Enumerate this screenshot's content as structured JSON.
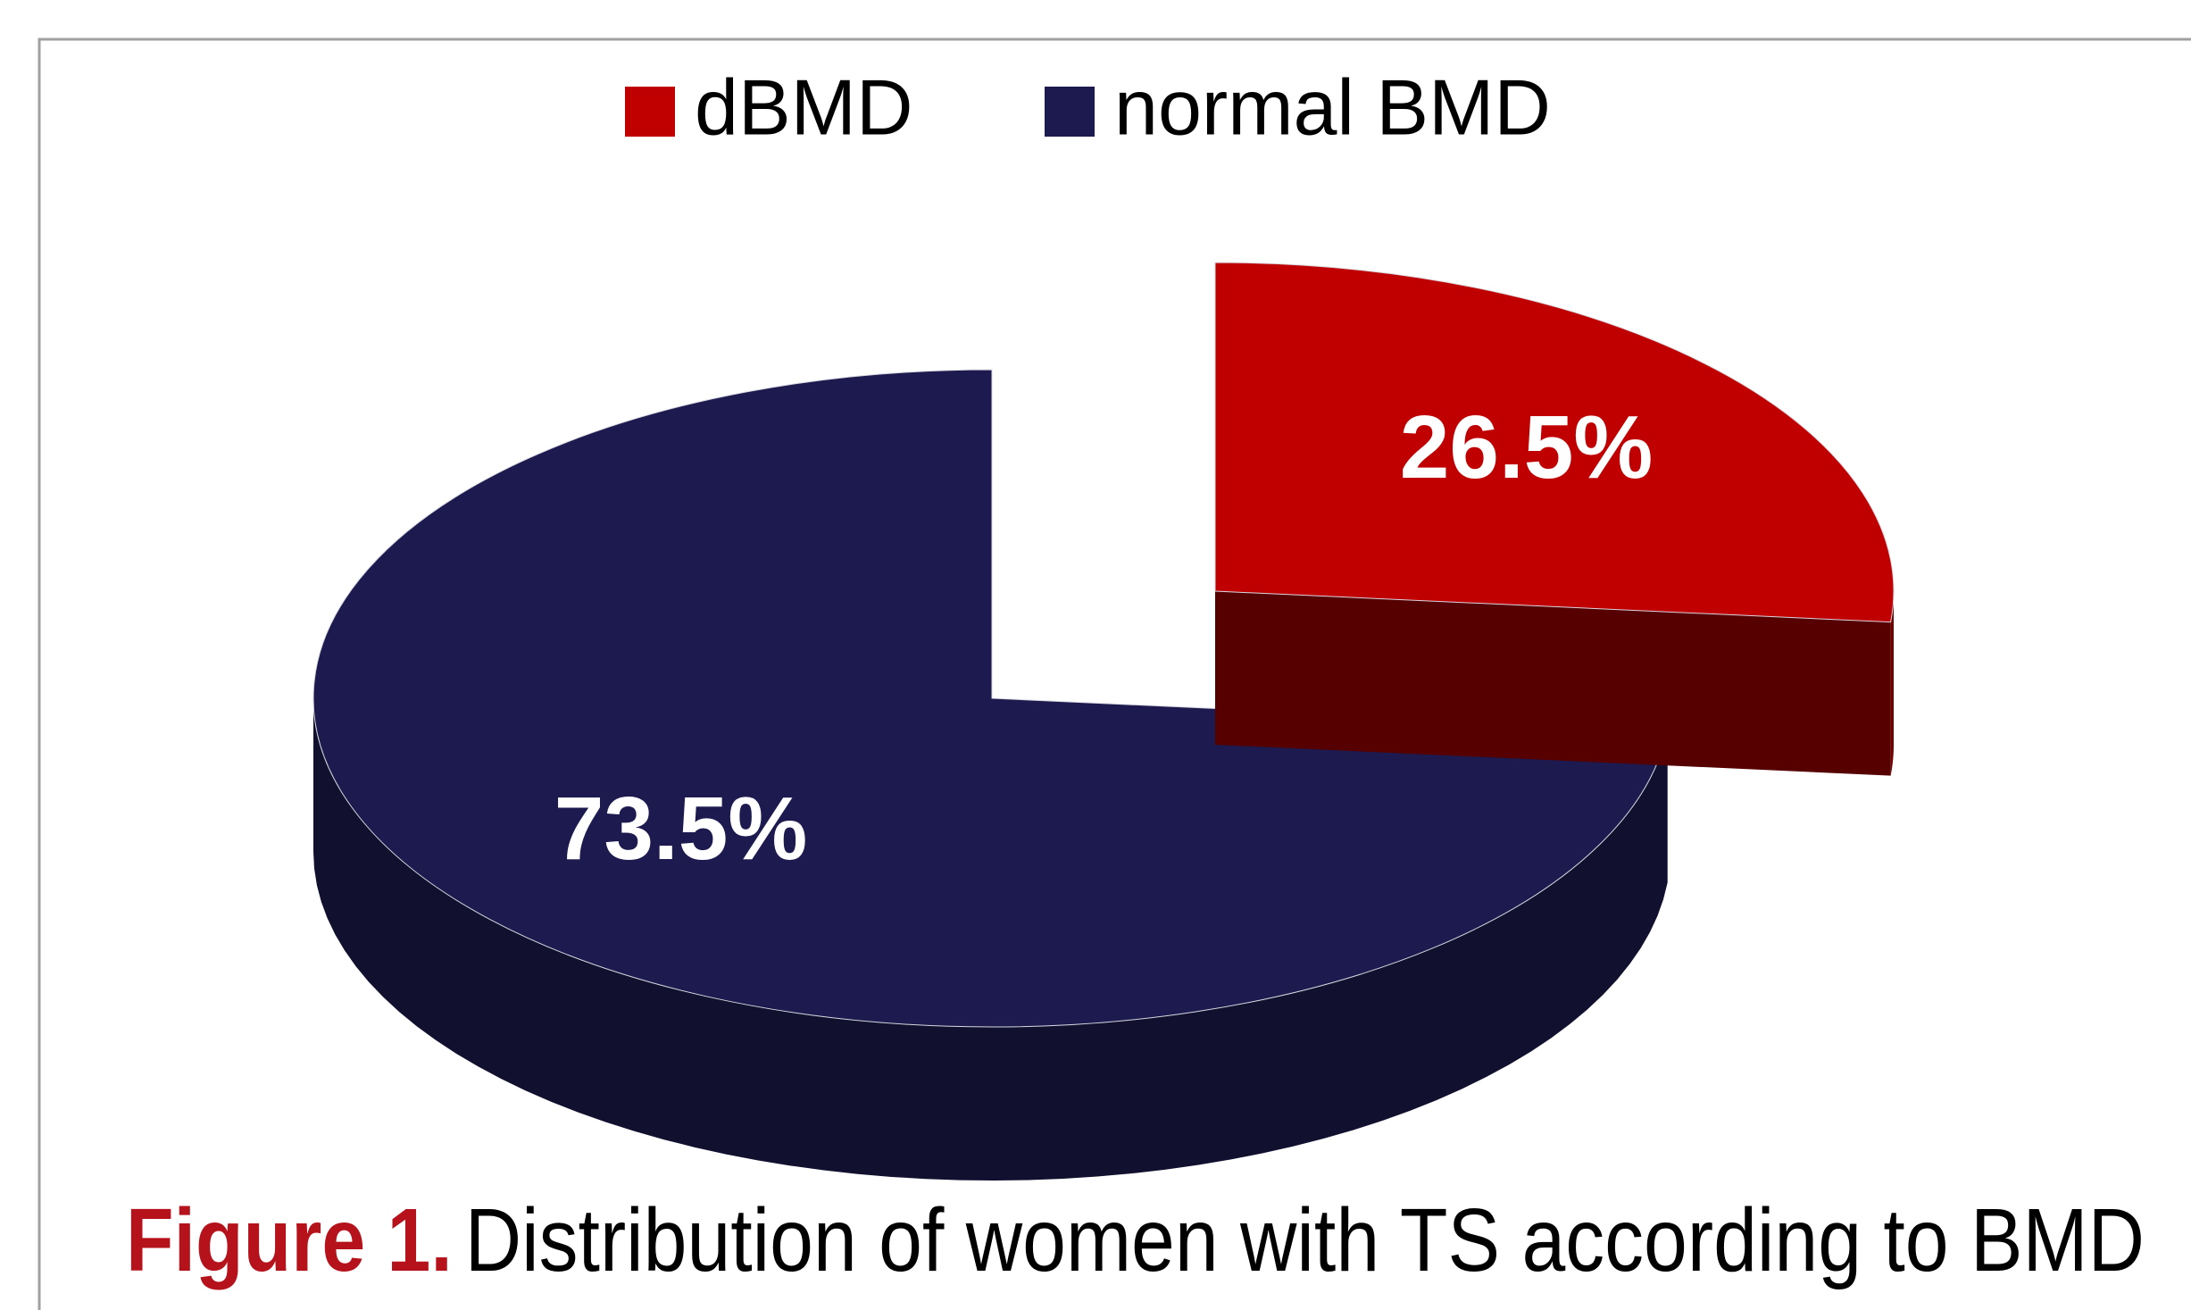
{
  "chart_data": {
    "type": "pie3d",
    "categories": [
      "dBMD",
      "normal BMD"
    ],
    "values": [
      26.5,
      73.5
    ],
    "value_labels": [
      "26.5%",
      "73.5%"
    ],
    "colors": [
      "#c00000",
      "#1c1a4e"
    ],
    "explode": [
      true,
      false
    ],
    "legend": "top",
    "figure_label": "Figure 1.",
    "caption": "Distribution of women with TS according to BMD"
  }
}
